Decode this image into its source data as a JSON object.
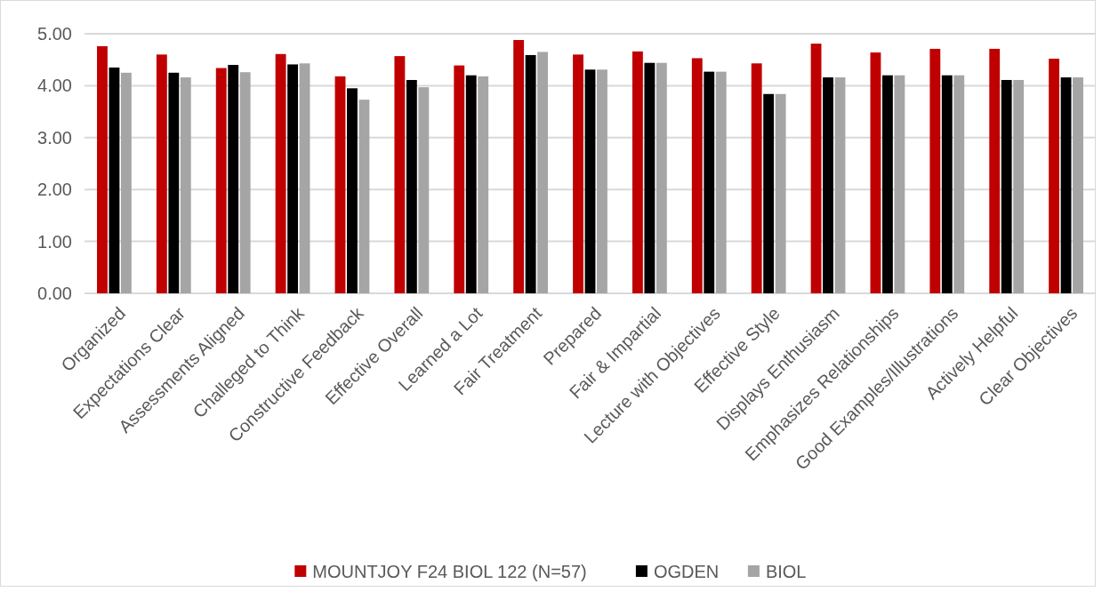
{
  "chart_data": {
    "type": "bar",
    "categories": [
      "Organized",
      "Expectations Clear",
      "Assessments Aligned",
      "Challeged to Think",
      "Constructive Feedback",
      "Effective Overall",
      "Learned a Lot",
      "Fair Treatment",
      "Prepared",
      "Fair & Impartial",
      "Lecture with Objectives",
      "Effective Style",
      "Displays Enthusiasm",
      "Emphasizes Relationships",
      "Good Examples/Illustrations",
      "Actively Helpful",
      "Clear Objectives"
    ],
    "series": [
      {
        "name": "MOUNTJOY F24 BIOL 122 (N=57)",
        "color": "#c00000",
        "values": [
          4.76,
          4.6,
          4.34,
          4.61,
          4.18,
          4.57,
          4.39,
          4.88,
          4.6,
          4.66,
          4.53,
          4.43,
          4.81,
          4.64,
          4.71,
          4.71,
          4.52
        ]
      },
      {
        "name": "OGDEN",
        "color": "#000000",
        "values": [
          4.35,
          4.25,
          4.4,
          4.41,
          3.95,
          4.11,
          4.2,
          4.59,
          4.31,
          4.44,
          4.27,
          3.84,
          4.16,
          4.2,
          4.2,
          4.11,
          4.16
        ]
      },
      {
        "name": "BIOL",
        "color": "#a5a5a5",
        "values": [
          4.25,
          4.16,
          4.26,
          4.43,
          3.73,
          3.97,
          4.18,
          4.65,
          4.31,
          4.44,
          4.27,
          3.84,
          4.16,
          4.2,
          4.2,
          4.11,
          4.16
        ]
      }
    ],
    "ylim": [
      0,
      5
    ],
    "yticks": [
      {
        "value": 0,
        "label": "0.00"
      },
      {
        "value": 1,
        "label": "1.00"
      },
      {
        "value": 2,
        "label": "2.00"
      },
      {
        "value": 3,
        "label": "3.00"
      },
      {
        "value": 4,
        "label": "4.00"
      },
      {
        "value": 5,
        "label": "5.00"
      }
    ],
    "grid": "y",
    "legend": "bottom"
  }
}
